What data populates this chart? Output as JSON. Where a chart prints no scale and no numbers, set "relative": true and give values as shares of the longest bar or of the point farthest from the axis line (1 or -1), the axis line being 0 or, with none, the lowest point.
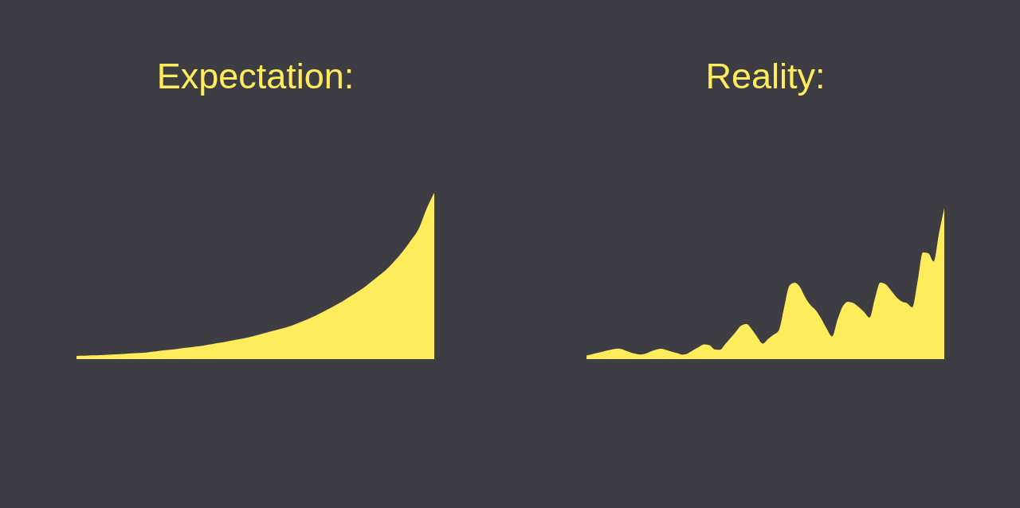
{
  "chart_data": [
    {
      "type": "area",
      "title": "Expectation:",
      "relative": true,
      "color": "#ffec5c",
      "categories": [
        null,
        null,
        null,
        null,
        null,
        null,
        null,
        null,
        null,
        null,
        null,
        null,
        null,
        null,
        null,
        null,
        null,
        null,
        null,
        null,
        null,
        null,
        null,
        null,
        null,
        null,
        null,
        null,
        null,
        null,
        null,
        null,
        null,
        null,
        null,
        null,
        null,
        null,
        null,
        null,
        null,
        null,
        null,
        null,
        null,
        null
      ],
      "values": [
        0.01,
        0.011,
        0.013,
        0.015,
        0.017,
        0.019,
        0.022,
        0.025,
        0.028,
        0.032,
        0.037,
        0.043,
        0.048,
        0.054,
        0.06,
        0.066,
        0.073,
        0.081,
        0.089,
        0.098,
        0.107,
        0.116,
        0.127,
        0.139,
        0.152,
        0.165,
        0.178,
        0.192,
        0.211,
        0.231,
        0.253,
        0.277,
        0.302,
        0.328,
        0.358,
        0.388,
        0.419,
        0.457,
        0.495,
        0.535,
        0.586,
        0.641,
        0.707,
        0.778,
        0.899,
        1
      ]
    },
    {
      "type": "area",
      "title": "Reality:",
      "relative": true,
      "color": "#ffec5c",
      "categories": [
        null,
        null,
        null,
        null,
        null,
        null,
        null,
        null,
        null,
        null,
        null,
        null,
        null,
        null,
        null,
        null,
        null,
        null,
        null,
        null,
        null,
        null,
        null,
        null,
        null,
        null,
        null,
        null,
        null,
        null,
        null,
        null,
        null,
        null,
        null,
        null,
        null,
        null,
        null,
        null,
        null,
        null,
        null,
        null,
        null,
        null,
        null,
        null,
        null,
        null,
        null,
        null,
        null,
        null,
        null,
        null,
        null,
        null,
        null,
        null,
        null,
        null,
        null,
        null,
        null,
        null,
        null,
        null
      ],
      "values": [
        0.013,
        0.021,
        0.03,
        0.039,
        0.048,
        0.056,
        0.06,
        0.051,
        0.037,
        0.026,
        0.02,
        0.025,
        0.04,
        0.052,
        0.058,
        0.049,
        0.039,
        0.029,
        0.019,
        0.028,
        0.049,
        0.069,
        0.088,
        0.083,
        0.055,
        0.052,
        0.09,
        0.131,
        0.173,
        0.214,
        0.224,
        0.186,
        0.136,
        0.093,
        0.124,
        0.151,
        0.181,
        0.333,
        0.48,
        0.5,
        0.47,
        0.399,
        0.348,
        0.313,
        0.257,
        0.192,
        0.141,
        0.252,
        0.343,
        0.373,
        0.363,
        0.336,
        0.303,
        0.267,
        0.394,
        0.5,
        0.49,
        0.449,
        0.404,
        0.375,
        0.363,
        0.335,
        0.509,
        0.702,
        0.697,
        0.641,
        0.828,
        1
      ]
    }
  ]
}
